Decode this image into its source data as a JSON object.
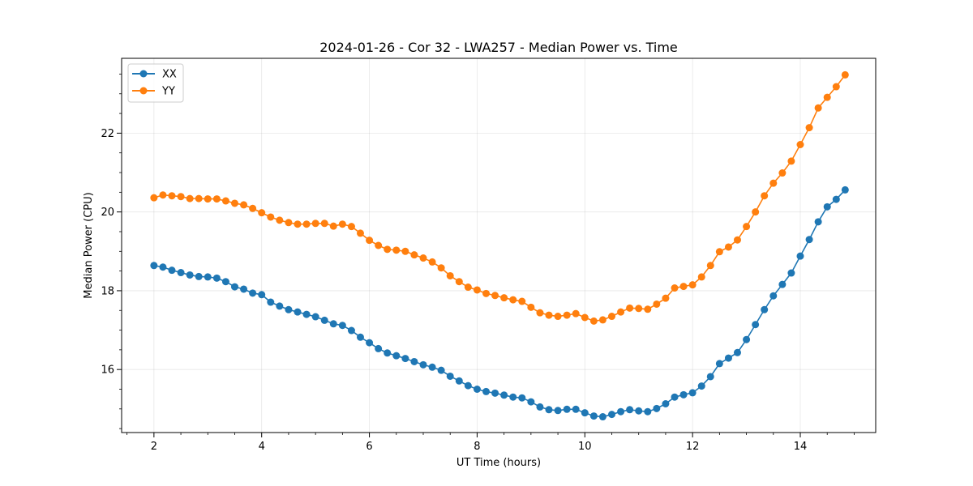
{
  "chart_data": {
    "type": "line",
    "title": "2024-01-26 - Cor 32 - LWA257 - Median Power vs. Time",
    "xlabel": "UT Time (hours)",
    "ylabel": "Median Power (CPU)",
    "xlim": [
      1.4,
      15.4
    ],
    "ylim": [
      14.4,
      23.9
    ],
    "x_ticks": [
      2,
      4,
      6,
      8,
      10,
      12,
      14
    ],
    "x_tick_labels": [
      "2",
      "4",
      "6",
      "8",
      "10",
      "12",
      "14"
    ],
    "y_ticks": [
      16,
      18,
      20,
      22
    ],
    "y_tick_labels": [
      "16",
      "18",
      "20",
      "22"
    ],
    "grid": true,
    "legend_position": "top-left",
    "x": [
      2.0,
      2.167,
      2.333,
      2.5,
      2.667,
      2.833,
      3.0,
      3.167,
      3.333,
      3.5,
      3.667,
      3.833,
      4.0,
      4.167,
      4.333,
      4.5,
      4.667,
      4.833,
      5.0,
      5.167,
      5.333,
      5.5,
      5.667,
      5.833,
      6.0,
      6.167,
      6.333,
      6.5,
      6.667,
      6.833,
      7.0,
      7.167,
      7.333,
      7.5,
      7.667,
      7.833,
      8.0,
      8.167,
      8.333,
      8.5,
      8.667,
      8.833,
      9.0,
      9.167,
      9.333,
      9.5,
      9.667,
      9.833,
      10.0,
      10.167,
      10.333,
      10.5,
      10.667,
      10.833,
      11.0,
      11.167,
      11.333,
      11.5,
      11.667,
      11.833,
      12.0,
      12.167,
      12.333,
      12.5,
      12.667,
      12.833,
      13.0,
      13.167,
      13.333,
      13.5,
      13.667,
      13.833,
      14.0,
      14.167,
      14.333,
      14.5,
      14.667,
      14.833
    ],
    "series": [
      {
        "name": "XX",
        "color": "#1f77b4",
        "values": [
          18.64,
          18.6,
          18.52,
          18.46,
          18.4,
          18.36,
          18.35,
          18.32,
          18.23,
          18.1,
          18.04,
          17.94,
          17.9,
          17.71,
          17.61,
          17.52,
          17.46,
          17.4,
          17.34,
          17.25,
          17.16,
          17.12,
          16.99,
          16.82,
          16.68,
          16.53,
          16.42,
          16.35,
          16.28,
          16.2,
          16.12,
          16.06,
          15.98,
          15.83,
          15.71,
          15.59,
          15.5,
          15.44,
          15.4,
          15.35,
          15.3,
          15.28,
          15.18,
          15.05,
          14.98,
          14.96,
          14.99,
          14.99,
          14.9,
          14.82,
          14.8,
          14.86,
          14.93,
          14.98,
          14.95,
          14.93,
          15.01,
          15.13,
          15.3,
          15.36,
          15.41,
          15.58,
          15.82,
          16.15,
          16.29,
          16.43,
          16.76,
          17.14,
          17.52,
          17.87,
          18.16,
          18.45,
          18.88,
          19.3,
          19.75,
          20.13,
          20.32,
          20.56
        ]
      },
      {
        "name": "YY",
        "color": "#ff7f0e",
        "values": [
          20.36,
          20.43,
          20.41,
          20.39,
          20.34,
          20.34,
          20.33,
          20.33,
          20.28,
          20.22,
          20.18,
          20.09,
          19.98,
          19.87,
          19.79,
          19.73,
          19.69,
          19.69,
          19.71,
          19.71,
          19.64,
          19.69,
          19.63,
          19.46,
          19.28,
          19.15,
          19.05,
          19.03,
          19.0,
          18.91,
          18.83,
          18.73,
          18.58,
          18.38,
          18.23,
          18.09,
          18.02,
          17.93,
          17.88,
          17.82,
          17.77,
          17.73,
          17.58,
          17.44,
          17.38,
          17.35,
          17.38,
          17.42,
          17.32,
          17.23,
          17.26,
          17.35,
          17.46,
          17.56,
          17.55,
          17.53,
          17.66,
          17.81,
          18.07,
          18.11,
          18.15,
          18.35,
          18.64,
          18.99,
          19.11,
          19.29,
          19.63,
          20.0,
          20.41,
          20.73,
          20.99,
          21.29,
          21.71,
          22.14,
          22.64,
          22.91,
          23.18,
          23.48
        ]
      }
    ]
  }
}
